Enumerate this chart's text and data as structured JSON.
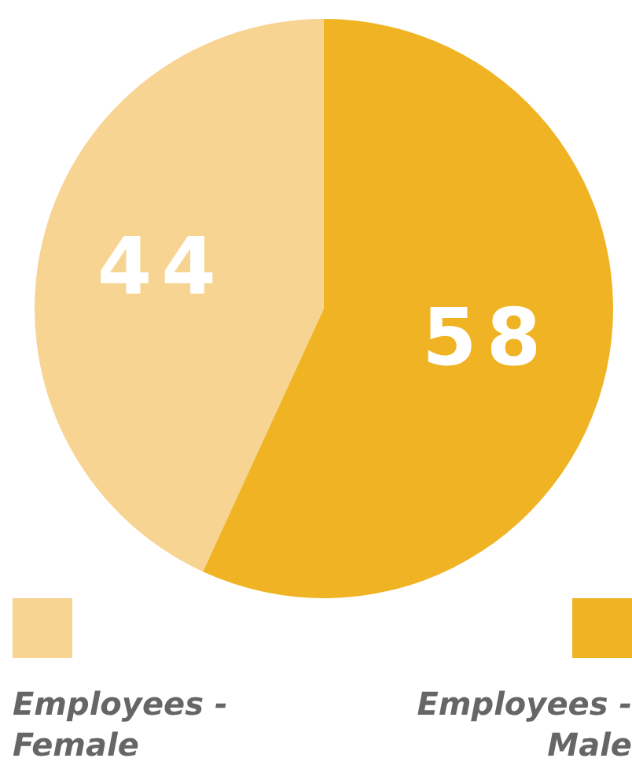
{
  "chart_data": {
    "type": "pie",
    "categories": [
      "Employees -Female",
      "Employees - Male"
    ],
    "values": [
      44,
      58
    ],
    "colors": [
      "#f7d492",
      "#f0b323"
    ],
    "data_labels": true,
    "legend": "bottom"
  }
}
